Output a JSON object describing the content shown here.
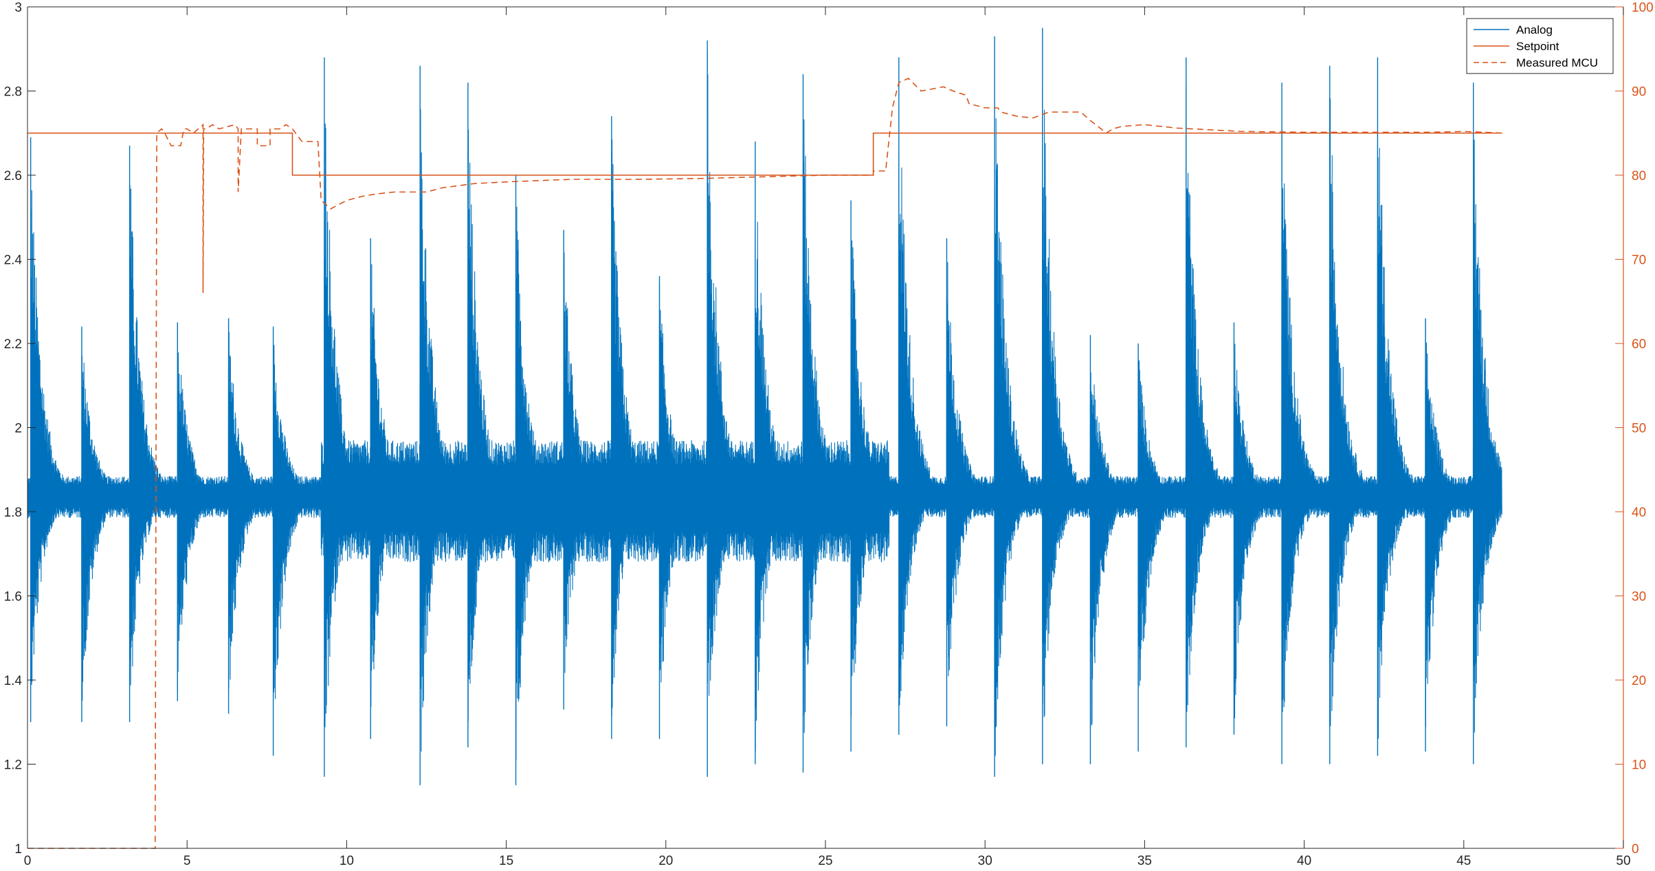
{
  "chart_data": {
    "type": "line",
    "title": "",
    "xlabel": "",
    "ylabel_left": "",
    "ylabel_right": "",
    "x_range": [
      0,
      50
    ],
    "x_ticks": [
      0,
      5,
      10,
      15,
      20,
      25,
      30,
      35,
      40,
      45,
      50
    ],
    "y_left_range": [
      1,
      3
    ],
    "y_left_ticks": [
      "1",
      "1.2",
      "1.4",
      "1.6",
      "1.8",
      "2",
      "2.2",
      "2.4",
      "2.6",
      "2.8",
      "3"
    ],
    "y_right_range": [
      0,
      100
    ],
    "y_right_ticks": [
      0,
      10,
      20,
      30,
      40,
      50,
      60,
      70,
      80,
      90,
      100
    ],
    "grid": false,
    "legend_position": "top-right",
    "colors": {
      "analog": "#0072BD",
      "setpoint": "#D95319",
      "measured": "#D95319",
      "axis": "#262626"
    },
    "series": [
      {
        "name": "Analog",
        "axis": "left",
        "style": "solid",
        "baseline": 1.84,
        "end_x": 46.2,
        "pulse_times": [
          0.1,
          1.7,
          3.2,
          4.7,
          6.3,
          7.7,
          9.3,
          10.75,
          12.3,
          13.8,
          15.3,
          16.8,
          18.3,
          19.8,
          21.3,
          22.8,
          24.3,
          25.8,
          27.3,
          28.8,
          30.3,
          31.8,
          33.3,
          34.8,
          36.3,
          37.8,
          39.3,
          40.8,
          42.3,
          43.8,
          45.3
        ],
        "peak_values": [
          2.69,
          2.24,
          2.67,
          2.25,
          2.26,
          2.24,
          2.88,
          2.45,
          2.86,
          2.82,
          2.6,
          2.47,
          2.74,
          2.36,
          2.92,
          2.68,
          2.84,
          2.54,
          2.88,
          2.45,
          2.93,
          2.95,
          2.22,
          2.2,
          2.88,
          2.25,
          2.82,
          2.86,
          2.88,
          2.26,
          2.82
        ],
        "trough_values": [
          1.3,
          1.3,
          1.3,
          1.35,
          1.32,
          1.22,
          1.17,
          1.26,
          1.15,
          1.24,
          1.15,
          1.33,
          1.26,
          1.26,
          1.17,
          1.2,
          1.18,
          1.23,
          1.27,
          1.29,
          1.17,
          1.2,
          1.2,
          1.23,
          1.24,
          1.27,
          1.2,
          1.2,
          1.22,
          1.23,
          1.2
        ]
      },
      {
        "name": "Setpoint",
        "axis": "right",
        "style": "solid",
        "x": [
          0,
          8.3,
          8.3,
          26.5,
          26.5,
          46.2
        ],
        "y": [
          85,
          85,
          80,
          80,
          85,
          85
        ]
      },
      {
        "name": "Measured MCU",
        "axis": "right",
        "style": "dashed",
        "x": [
          0,
          4.0,
          4.05,
          4.2,
          4.3,
          4.5,
          4.8,
          4.9,
          5.0,
          5.2,
          5.5,
          5.5,
          5.52,
          5.6,
          5.8,
          6.0,
          6.5,
          6.6,
          6.6,
          6.7,
          6.9,
          7.2,
          7.2,
          7.6,
          7.6,
          7.9,
          8.1,
          8.3,
          8.6,
          8.6,
          9.1,
          9.2,
          9.5,
          10.0,
          10.5,
          11.0,
          11.5,
          12.0,
          12.5,
          13.0,
          14.0,
          15.0,
          17.0,
          19.0,
          21.0,
          23.0,
          25.0,
          26.5,
          26.5,
          26.9,
          26.9,
          27.1,
          27.3,
          27.6,
          28.0,
          28.7,
          29.0,
          29.4,
          29.5,
          30.0,
          30.4,
          30.5,
          31.0,
          31.5,
          32.0,
          33.0,
          33.3,
          33.8,
          34.0,
          34.3,
          35.0,
          36.0,
          38.0,
          40.0,
          42.0,
          44.0,
          45.0,
          46.2
        ],
        "y": [
          0,
          0,
          85,
          85.5,
          85,
          83.5,
          83.5,
          85.5,
          85.5,
          85,
          86,
          66,
          85.5,
          85.5,
          86,
          85.5,
          86,
          85.5,
          78,
          85.5,
          85.5,
          85.5,
          83.5,
          83.5,
          85.5,
          85.5,
          86,
          85.5,
          84,
          84,
          84,
          77,
          76,
          77,
          77.5,
          77.8,
          78,
          78,
          78,
          78.5,
          79,
          79.2,
          79.5,
          79.5,
          79.6,
          79.8,
          80,
          80,
          80.5,
          80.5,
          81,
          88,
          91,
          91.5,
          90,
          90.5,
          90,
          89.5,
          88.5,
          88,
          88,
          87.5,
          87,
          86.8,
          87.5,
          87.5,
          86.5,
          85,
          85.5,
          85.8,
          86,
          85.6,
          85.2,
          85.1,
          85.1,
          85.1,
          85.2,
          85
        ]
      }
    ],
    "legend": [
      "Analog",
      "Setpoint",
      "Measured MCU"
    ]
  }
}
